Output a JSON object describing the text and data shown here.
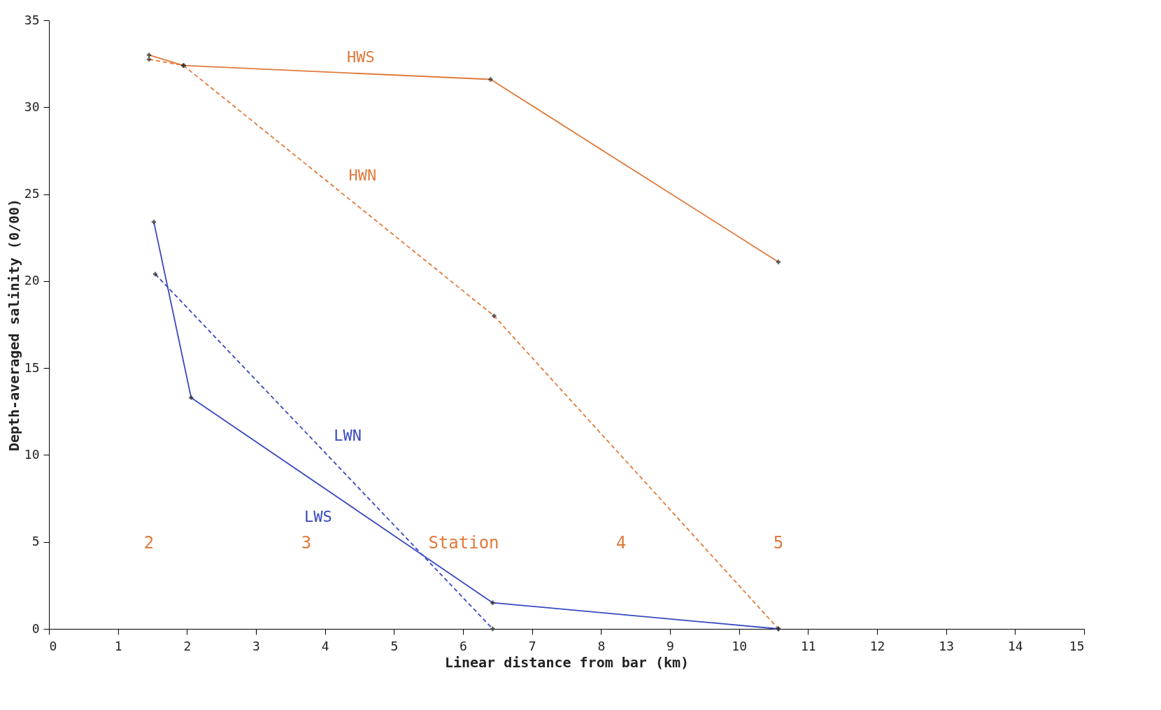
{
  "chart_data": {
    "type": "line",
    "xlabel": "Linear distance from bar  (km)",
    "ylabel": "Depth-averaged salinity  (0/00)",
    "xlim": [
      0,
      15
    ],
    "xticks": [
      0,
      1,
      2,
      3,
      4,
      5,
      6,
      7,
      8,
      9,
      10,
      11,
      12,
      13,
      14,
      15
    ],
    "ylim": [
      0,
      35
    ],
    "yticks": [
      0,
      5,
      10,
      15,
      20,
      25,
      30,
      35
    ],
    "grid": false,
    "marker": "cross",
    "series": [
      {
        "name": "HWS",
        "color": "#e07a3c",
        "line_style": "solid",
        "x": [
          1.45,
          1.95,
          6.4,
          10.57
        ],
        "values": [
          33.0,
          32.4,
          31.6,
          21.1
        ]
      },
      {
        "name": "HWN",
        "color": "#e07a3c",
        "line_style": "dashed",
        "x": [
          1.45,
          1.95,
          6.45,
          10.57
        ],
        "values": [
          32.75,
          32.4,
          18.0,
          0
        ]
      },
      {
        "name": "LWS",
        "color": "#3848c0",
        "line_style": "solid",
        "x": [
          1.52,
          2.06,
          6.43,
          10.57
        ],
        "values": [
          23.4,
          13.3,
          1.5,
          0
        ]
      },
      {
        "name": "LWN",
        "color": "#3848c0",
        "line_style": "dashed",
        "x": [
          1.54,
          6.43
        ],
        "values": [
          20.4,
          0
        ]
      }
    ],
    "annotations": [
      "2",
      "3",
      "Station",
      "4",
      "5"
    ]
  }
}
